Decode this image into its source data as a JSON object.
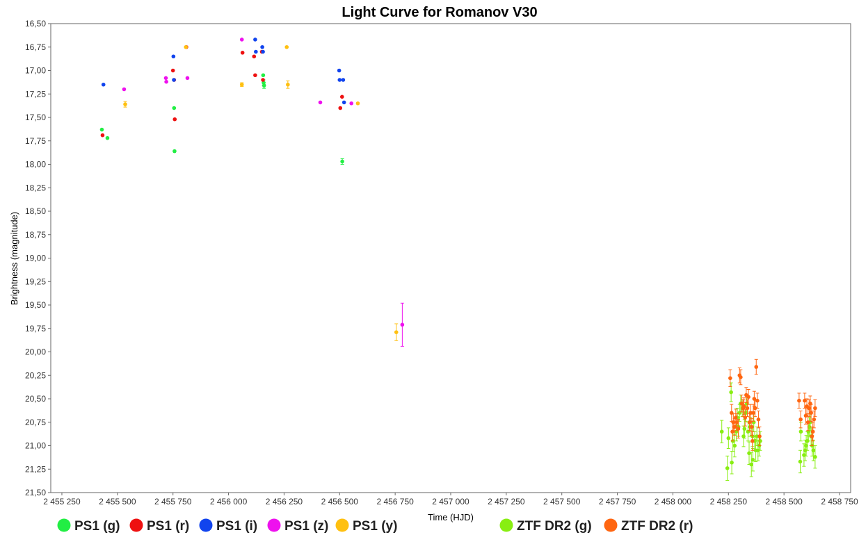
{
  "chart_data": {
    "type": "scatter",
    "title": "Light Curve for Romanov V30",
    "xlabel": "Time (HJD)",
    "ylabel": "Brightness (magnitude)",
    "xlim": [
      2455200,
      2458800
    ],
    "ylim": [
      16.5,
      21.5
    ],
    "y_inverted": true,
    "grid": false,
    "legend_position": "bottom",
    "x_ticks": [
      2455250,
      2455500,
      2455750,
      2456000,
      2456250,
      2456500,
      2456750,
      2457000,
      2457250,
      2457500,
      2457750,
      2458000,
      2458250,
      2458500,
      2458750
    ],
    "x_tick_labels": [
      "2 455 250",
      "2 455 500",
      "2 455 750",
      "2 456 000",
      "2 456 250",
      "2 456 500",
      "2 456 750",
      "2 457 000",
      "2 457 250",
      "2 457 500",
      "2 457 750",
      "2 458 000",
      "2 458 250",
      "2 458 500",
      "2 458 750"
    ],
    "y_ticks": [
      16.5,
      16.75,
      17.0,
      17.25,
      17.5,
      17.75,
      18.0,
      18.25,
      18.5,
      18.75,
      19.0,
      19.25,
      19.5,
      19.75,
      20.0,
      20.25,
      20.5,
      20.75,
      21.0,
      21.25,
      21.5
    ],
    "y_tick_labels": [
      "16,50",
      "16,75",
      "17,00",
      "17,25",
      "17,50",
      "17,75",
      "18,00",
      "18,25",
      "18,50",
      "18,75",
      "19,00",
      "19,25",
      "19,50",
      "19,75",
      "20,00",
      "20,25",
      "20,50",
      "20,75",
      "21,00",
      "21,25",
      "21,50"
    ],
    "series": [
      {
        "name": "PS1 (g)",
        "color": "#22ee44",
        "x": [
          2455430,
          2455455,
          2455755,
          2455757,
          2456156,
          2456158,
          2456160,
          2456512
        ],
        "y": [
          17.63,
          17.72,
          17.4,
          17.86,
          17.05,
          17.13,
          17.16,
          17.97
        ],
        "err": [
          0.01,
          0.01,
          0.01,
          0.01,
          0.01,
          0.03,
          0.03,
          0.03
        ]
      },
      {
        "name": "PS1 (r)",
        "color": "#ee1111",
        "x": [
          2455433,
          2455750,
          2455755,
          2455758,
          2455810,
          2456063,
          2456115,
          2456120,
          2456150,
          2456155,
          2456503,
          2456511
        ],
        "y": [
          17.69,
          17.0,
          17.1,
          17.52,
          16.75,
          16.81,
          16.85,
          17.05,
          16.8,
          17.1,
          17.4,
          17.28
        ],
        "err": [
          0.01,
          0.01,
          0.01,
          0.01,
          0.01,
          0.01,
          0.01,
          0.01,
          0.01,
          0.01,
          0.01,
          0.01
        ]
      },
      {
        "name": "PS1 (i)",
        "color": "#1144ee",
        "x": [
          2455437,
          2455752,
          2455754,
          2456120,
          2456123,
          2456152,
          2456155,
          2456498,
          2456500,
          2456516,
          2456520
        ],
        "y": [
          17.15,
          16.85,
          17.1,
          16.67,
          16.8,
          16.75,
          16.8,
          17.0,
          17.1,
          17.1,
          17.34
        ],
        "err": [
          0.01,
          0.01,
          0.01,
          0.01,
          0.01,
          0.01,
          0.01,
          0.01,
          0.01,
          0.01,
          0.01
        ]
      },
      {
        "name": "PS1 (z)",
        "color": "#ee11ee",
        "x": [
          2455530,
          2455718,
          2455720,
          2455815,
          2456060,
          2456413,
          2456553,
          2456782
        ],
        "y": [
          17.2,
          17.08,
          17.12,
          17.08,
          16.67,
          17.34,
          17.35,
          19.71
        ],
        "err": [
          0.01,
          0.01,
          0.01,
          0.01,
          0.01,
          0.01,
          0.01,
          0.23
        ]
      },
      {
        "name": "PS1 (y)",
        "color": "#ffc010",
        "x": [
          2455535,
          2455808,
          2456060,
          2456262,
          2456267,
          2456582,
          2456755
        ],
        "y": [
          17.36,
          16.75,
          17.15,
          16.75,
          17.15,
          17.35,
          19.79
        ],
        "err": [
          0.03,
          0.01,
          0.02,
          0.01,
          0.04,
          0.01,
          0.09
        ]
      },
      {
        "name": "ZTF DR2 (g)",
        "color": "#88ee11",
        "x": [
          2458220,
          2458245,
          2458250,
          2458262,
          2458265,
          2458270,
          2458278,
          2458285,
          2458290,
          2458295,
          2458300,
          2458305,
          2458312,
          2458318,
          2458322,
          2458328,
          2458333,
          2458338,
          2458343,
          2458348,
          2458353,
          2458358,
          2458360,
          2458364,
          2458368,
          2458373,
          2458378,
          2458383,
          2458388,
          2458393,
          2458573,
          2458576,
          2458590,
          2458595,
          2458600,
          2458605,
          2458610,
          2458614,
          2458618,
          2458622,
          2458627,
          2458632,
          2458640
        ],
        "y": [
          20.85,
          21.24,
          20.92,
          20.43,
          21.18,
          20.95,
          21.0,
          20.85,
          20.7,
          20.8,
          20.65,
          20.55,
          20.6,
          20.9,
          20.82,
          20.65,
          20.55,
          20.85,
          21.08,
          20.8,
          21.2,
          20.9,
          21.15,
          20.75,
          20.95,
          21.05,
          20.9,
          21.05,
          21.0,
          20.95,
          21.17,
          20.85,
          21.1,
          21.05,
          21.0,
          20.95,
          20.85,
          20.8,
          20.75,
          20.9,
          21.0,
          21.05,
          21.12
        ],
        "err": [
          0.12,
          0.13,
          0.11,
          0.1,
          0.12,
          0.11,
          0.12,
          0.1,
          0.1,
          0.1,
          0.09,
          0.09,
          0.09,
          0.11,
          0.1,
          0.09,
          0.09,
          0.1,
          0.12,
          0.1,
          0.13,
          0.11,
          0.12,
          0.1,
          0.1,
          0.12,
          0.1,
          0.11,
          0.11,
          0.1,
          0.12,
          0.1,
          0.12,
          0.11,
          0.11,
          0.1,
          0.1,
          0.1,
          0.09,
          0.1,
          0.11,
          0.11,
          0.12
        ]
      },
      {
        "name": "ZTF DR2 (r)",
        "color": "#ff6611",
        "x": [
          2458258,
          2458264,
          2458268,
          2458272,
          2458278,
          2458283,
          2458288,
          2458294,
          2458300,
          2458305,
          2458310,
          2458316,
          2458320,
          2458325,
          2458330,
          2458335,
          2458340,
          2458345,
          2458350,
          2458355,
          2458358,
          2458362,
          2458366,
          2458370,
          2458375,
          2458380,
          2458385,
          2458390,
          2458568,
          2458575,
          2458593,
          2458598,
          2458603,
          2458608,
          2458613,
          2458618,
          2458622,
          2458626,
          2458630,
          2458635,
          2458640
        ],
        "y": [
          20.28,
          20.65,
          20.85,
          20.75,
          20.8,
          20.7,
          20.75,
          20.82,
          20.25,
          20.27,
          20.55,
          20.6,
          20.58,
          20.7,
          20.46,
          20.6,
          20.48,
          20.75,
          20.65,
          20.8,
          20.95,
          20.65,
          20.5,
          20.6,
          20.16,
          20.52,
          20.72,
          20.9,
          20.52,
          20.72,
          20.52,
          20.68,
          20.58,
          20.75,
          20.6,
          20.55,
          20.65,
          20.9,
          20.85,
          20.72,
          20.6
        ],
        "err": [
          0.09,
          0.09,
          0.1,
          0.09,
          0.09,
          0.09,
          0.09,
          0.1,
          0.08,
          0.08,
          0.09,
          0.09,
          0.09,
          0.09,
          0.08,
          0.09,
          0.08,
          0.09,
          0.09,
          0.09,
          0.1,
          0.09,
          0.08,
          0.09,
          0.08,
          0.08,
          0.09,
          0.1,
          0.08,
          0.09,
          0.08,
          0.09,
          0.08,
          0.09,
          0.09,
          0.08,
          0.09,
          0.1,
          0.1,
          0.09,
          0.09
        ]
      }
    ]
  }
}
